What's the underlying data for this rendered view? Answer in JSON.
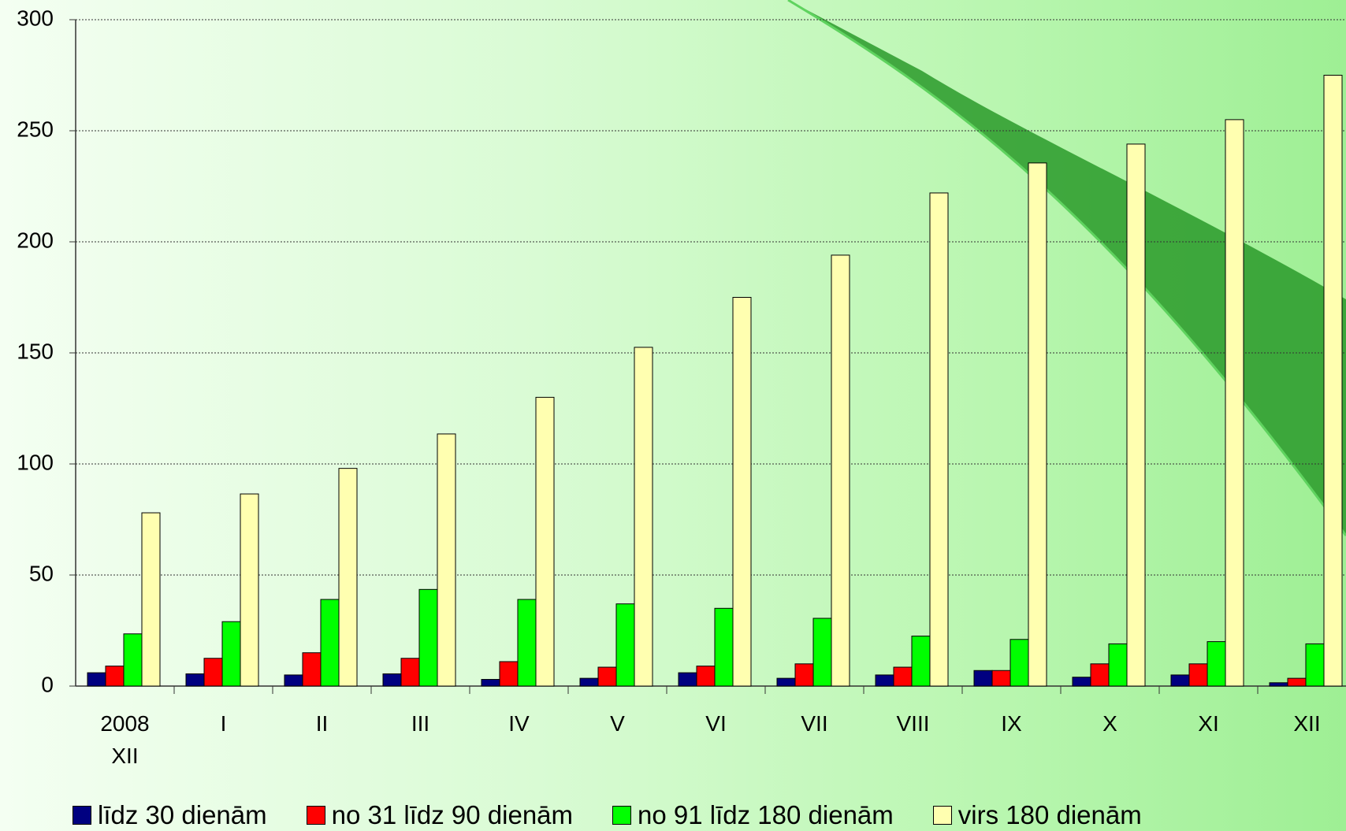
{
  "chart_data": {
    "type": "bar",
    "categories": [
      "2008 XII",
      "I",
      "II",
      "III",
      "IV",
      "V",
      "VI",
      "VII",
      "VIII",
      "IX",
      "X",
      "XI",
      "XII"
    ],
    "series": [
      {
        "name": "līdz 30 dienām",
        "color": "#000080",
        "values": [
          6,
          5.5,
          5,
          5.5,
          3,
          3.5,
          6,
          3.5,
          5,
          7,
          4,
          5,
          1.5
        ]
      },
      {
        "name": "no 31 līdz 90 dienām",
        "color": "#ff0000",
        "values": [
          9,
          12.5,
          15,
          12.5,
          11,
          8.5,
          9,
          10,
          8.5,
          7,
          10,
          10,
          3.5
        ]
      },
      {
        "name": "no 91 līdz 180 dienām",
        "color": "#00ff00",
        "values": [
          23.5,
          29,
          39,
          43.5,
          39,
          37,
          35,
          30.5,
          22.5,
          21,
          19,
          20,
          19
        ]
      },
      {
        "name": "virs 180 dienām",
        "color": "#ffffb0",
        "values": [
          78,
          86.5,
          98,
          113.5,
          130,
          152.5,
          175,
          194,
          222,
          235.5,
          244,
          255,
          275
        ]
      }
    ],
    "ylim": [
      0,
      300
    ],
    "yticks": [
      0,
      50,
      100,
      150,
      200,
      250,
      300
    ],
    "grid": true,
    "legend": "bottom"
  }
}
